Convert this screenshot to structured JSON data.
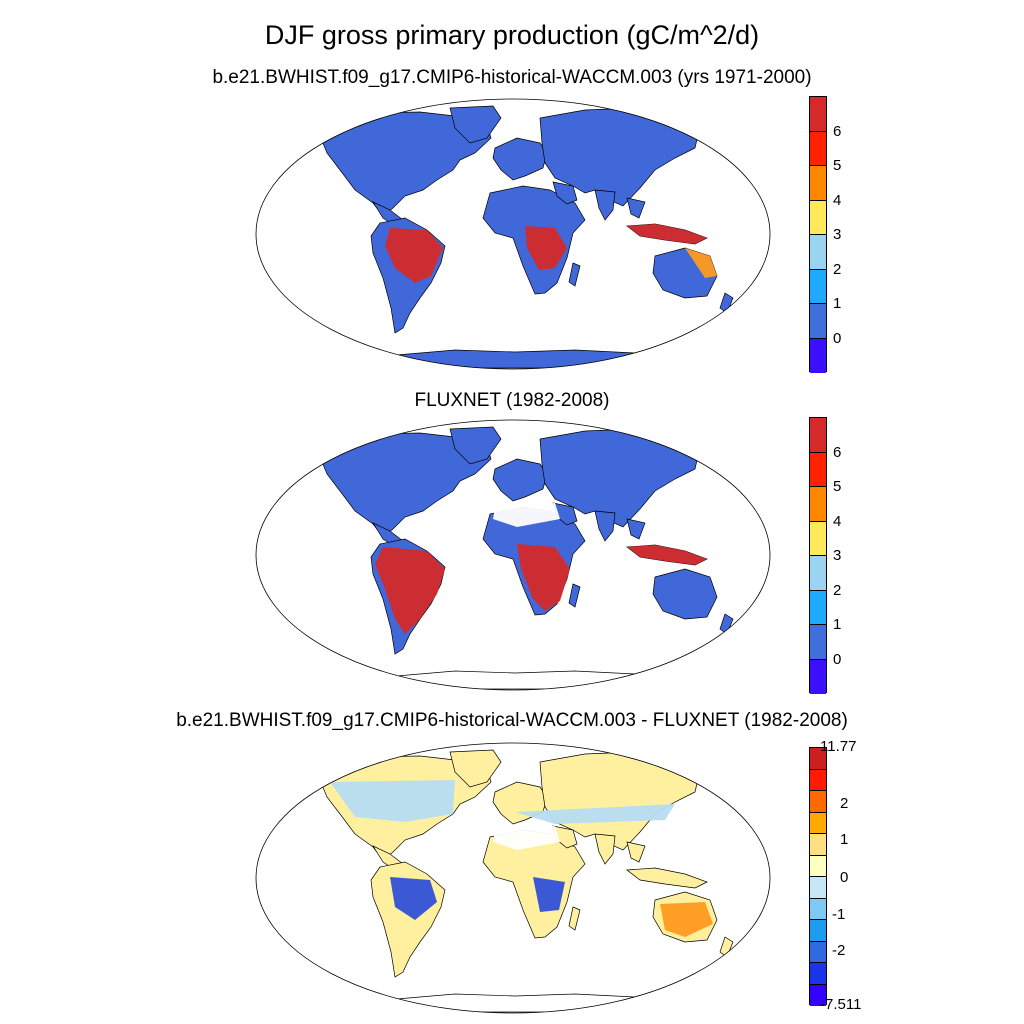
{
  "title": "DJF gross primary production (gC/m^2/d)",
  "panels": [
    {
      "title": "b.e21.BWHIST.f09_g17.CMIP6-historical-WACCM.003 (yrs 1971-2000)"
    },
    {
      "title": "FLUXNET (1982-2008)"
    },
    {
      "title": "b.e21.BWHIST.f09_g17.CMIP6-historical-WACCM.003 - FLUXNET (1982-2008)"
    }
  ],
  "colorbars": {
    "absolute": {
      "colors": [
        "#d42a2a",
        "#ff2200",
        "#ff8800",
        "#ffea5c",
        "#9ad4f0",
        "#1eaaff",
        "#3f6fdd",
        "#3d0fff"
      ],
      "labels": [
        "6",
        "5",
        "4",
        "3",
        "2",
        "1",
        "0"
      ]
    },
    "difference": {
      "colors": [
        "#cc2020",
        "#ff1a00",
        "#ff6a00",
        "#ffaa00",
        "#ffe080",
        "#ffffc0",
        "#c6e8f6",
        "#7dcaf5",
        "#1e9df0",
        "#2f6ae0",
        "#1a35e8",
        "#3500ff"
      ],
      "labels": [
        "11.77",
        "2",
        "1",
        "0",
        "-1",
        "-2",
        "-7.511"
      ]
    }
  },
  "land_colors": {
    "low": "#4168d9",
    "high": "#d42a2a",
    "mid": "#ff9a20",
    "diff_base": "#fff0a0",
    "diff_cool": "#b7dcf2",
    "diff_blue": "#3050d8",
    "missing": "#ffffff",
    "ice": "#ffffff"
  }
}
